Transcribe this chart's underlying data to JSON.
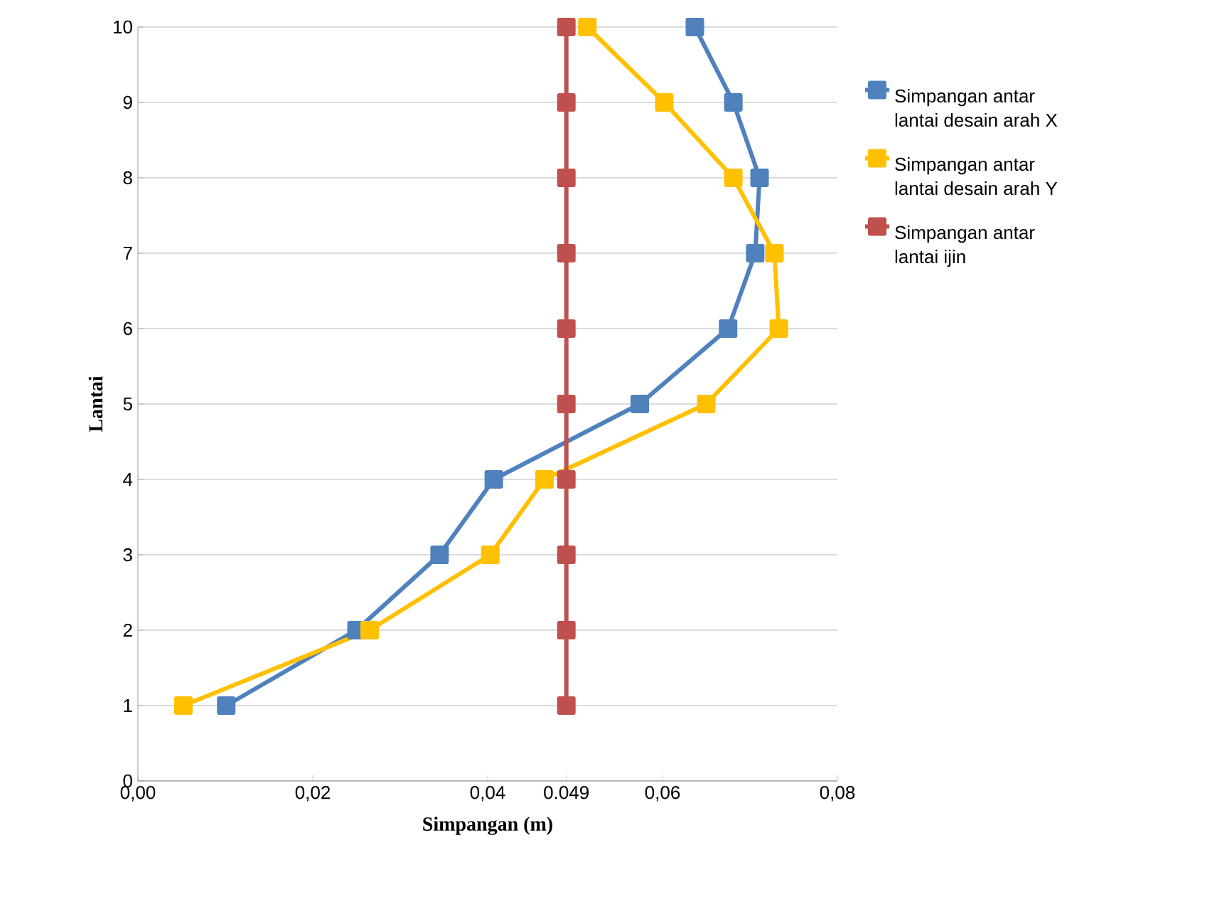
{
  "chart_data": {
    "type": "line",
    "xlabel": "Simpangan (m)",
    "ylabel": "Lantai",
    "xlim": [
      0,
      0.08
    ],
    "ylim": [
      0,
      10
    ],
    "xticks": [
      {
        "value": 0,
        "label": "0,00"
      },
      {
        "value": 0.02,
        "label": "0,02"
      },
      {
        "value": 0.04,
        "label": "0,04"
      },
      {
        "value": 0.049,
        "label": "0.049"
      },
      {
        "value": 0.06,
        "label": "0,06"
      },
      {
        "value": 0.08,
        "label": "0,08"
      }
    ],
    "yticks": [
      0,
      1,
      2,
      3,
      4,
      5,
      6,
      7,
      8,
      9,
      10
    ],
    "grid": "y",
    "legend": "right",
    "marker": "square",
    "line_style": "solid",
    "series": [
      {
        "name": "Simpangan antar lantai desain arah X",
        "color": "#4f81bd",
        "x": [
          0.0101,
          0.025,
          0.0345,
          0.0407,
          0.0574,
          0.0675,
          0.0706,
          0.0711,
          0.0681,
          0.0637
        ],
        "values": [
          1,
          2,
          3,
          4,
          5,
          6,
          7,
          8,
          9,
          10
        ]
      },
      {
        "name": "Simpangan antar lantai desain arah Y",
        "color": "#ffc000",
        "x": [
          0.0052,
          0.0265,
          0.0403,
          0.0465,
          0.065,
          0.0733,
          0.0728,
          0.0681,
          0.0602,
          0.0514
        ],
        "values": [
          1,
          2,
          3,
          4,
          5,
          6,
          7,
          8,
          9,
          10
        ]
      },
      {
        "name": "Simpangan antar lantai ijin",
        "color": "#c0504d",
        "x": [
          0.049,
          0.049,
          0.049,
          0.049,
          0.049,
          0.049,
          0.049,
          0.049,
          0.049,
          0.049
        ],
        "values": [
          1,
          2,
          3,
          4,
          5,
          6,
          7,
          8,
          9,
          10
        ]
      }
    ]
  }
}
